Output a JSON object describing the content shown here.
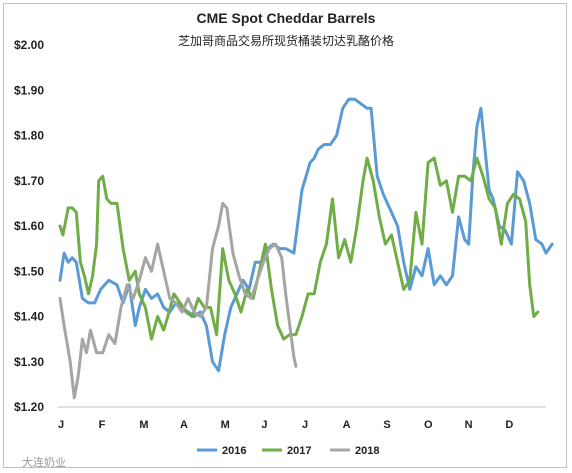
{
  "chart_data": {
    "type": "line",
    "title": "CME Spot Cheddar Barrels",
    "subtitle": "芝加哥商品交易所现货桶装切达乳酪价格",
    "xlabel": "",
    "ylabel": "",
    "months": [
      "J",
      "F",
      "M",
      "A",
      "M",
      "J",
      "J",
      "A",
      "S",
      "O",
      "N",
      "D"
    ],
    "yticks": [
      "$1.20",
      "$1.30",
      "$1.40",
      "$1.50",
      "$1.60",
      "$1.70",
      "$1.80",
      "$1.90",
      "$2.00"
    ],
    "ylim": [
      1.2,
      2.0
    ],
    "xlim": [
      0,
      12
    ],
    "grid": false,
    "legend": "bottom",
    "watermark": "大连奶业",
    "colors": {
      "2016": "#5b9bd5",
      "2017": "#70ad47",
      "2018": "#a5a5a5"
    },
    "series": [
      {
        "name": "2016",
        "x": [
          0.05,
          0.15,
          0.25,
          0.35,
          0.45,
          0.6,
          0.75,
          0.9,
          1.05,
          1.25,
          1.45,
          1.6,
          1.75,
          1.9,
          2.0,
          2.15,
          2.3,
          2.45,
          2.6,
          2.75,
          2.9,
          3.05,
          3.2,
          3.35,
          3.5,
          3.65,
          3.8,
          3.95,
          4.1,
          4.25,
          4.4,
          4.55,
          4.7,
          4.85,
          5.0,
          5.15,
          5.3,
          5.45,
          5.6,
          5.8,
          6.0,
          6.1,
          6.2,
          6.3,
          6.4,
          6.55,
          6.7,
          6.85,
          7.0,
          7.15,
          7.3,
          7.45,
          7.6,
          7.7,
          7.85,
          8.0,
          8.2,
          8.35,
          8.5,
          8.65,
          8.8,
          8.95,
          9.1,
          9.25,
          9.4,
          9.55,
          9.7,
          9.85,
          10.0,
          10.1,
          10.2,
          10.3,
          10.4,
          10.5,
          10.6,
          10.7,
          10.85,
          11.0,
          11.15,
          11.3,
          11.45,
          11.6,
          11.75,
          11.9,
          12.0,
          12.15
        ],
        "values": [
          1.48,
          1.54,
          1.52,
          1.53,
          1.52,
          1.44,
          1.43,
          1.43,
          1.46,
          1.48,
          1.47,
          1.43,
          1.47,
          1.38,
          1.42,
          1.46,
          1.44,
          1.45,
          1.42,
          1.41,
          1.43,
          1.42,
          1.41,
          1.4,
          1.41,
          1.38,
          1.3,
          1.28,
          1.36,
          1.42,
          1.45,
          1.48,
          1.46,
          1.52,
          1.52,
          1.55,
          1.56,
          1.55,
          1.55,
          1.54,
          1.68,
          1.71,
          1.74,
          1.75,
          1.77,
          1.78,
          1.78,
          1.8,
          1.86,
          1.88,
          1.88,
          1.87,
          1.86,
          1.86,
          1.71,
          1.67,
          1.63,
          1.6,
          1.52,
          1.46,
          1.51,
          1.49,
          1.55,
          1.47,
          1.49,
          1.47,
          1.49,
          1.62,
          1.57,
          1.56,
          1.71,
          1.82,
          1.86,
          1.77,
          1.68,
          1.66,
          1.6,
          1.59,
          1.56,
          1.72,
          1.7,
          1.65,
          1.57,
          1.56,
          1.54,
          1.56
        ]
      },
      {
        "name": "2017",
        "x": [
          0.05,
          0.12,
          0.25,
          0.35,
          0.45,
          0.55,
          0.65,
          0.75,
          0.85,
          0.95,
          1.0,
          1.1,
          1.2,
          1.3,
          1.45,
          1.6,
          1.75,
          1.9,
          2.0,
          2.15,
          2.3,
          2.45,
          2.6,
          2.7,
          2.85,
          3.0,
          3.15,
          3.3,
          3.45,
          3.6,
          3.75,
          3.9,
          4.05,
          4.2,
          4.35,
          4.5,
          4.65,
          4.8,
          4.95,
          5.1,
          5.25,
          5.4,
          5.55,
          5.7,
          5.85,
          6.0,
          6.15,
          6.3,
          6.45,
          6.6,
          6.75,
          6.9,
          7.05,
          7.2,
          7.35,
          7.5,
          7.6,
          7.75,
          7.9,
          8.05,
          8.2,
          8.35,
          8.5,
          8.65,
          8.8,
          8.95,
          9.1,
          9.25,
          9.4,
          9.55,
          9.7,
          9.85,
          10.0,
          10.15,
          10.3,
          10.45,
          10.6,
          10.75,
          10.9,
          11.05,
          11.2,
          11.35,
          11.5,
          11.6,
          11.7,
          11.8
        ],
        "values": [
          1.6,
          1.58,
          1.64,
          1.64,
          1.63,
          1.52,
          1.49,
          1.45,
          1.49,
          1.56,
          1.7,
          1.71,
          1.66,
          1.65,
          1.65,
          1.55,
          1.48,
          1.5,
          1.45,
          1.42,
          1.35,
          1.4,
          1.37,
          1.4,
          1.45,
          1.43,
          1.41,
          1.4,
          1.44,
          1.42,
          1.42,
          1.36,
          1.55,
          1.48,
          1.45,
          1.41,
          1.46,
          1.44,
          1.5,
          1.56,
          1.46,
          1.38,
          1.35,
          1.36,
          1.36,
          1.4,
          1.45,
          1.45,
          1.52,
          1.56,
          1.66,
          1.53,
          1.57,
          1.52,
          1.6,
          1.7,
          1.75,
          1.7,
          1.62,
          1.56,
          1.58,
          1.52,
          1.46,
          1.48,
          1.63,
          1.56,
          1.74,
          1.75,
          1.69,
          1.7,
          1.63,
          1.71,
          1.71,
          1.7,
          1.75,
          1.71,
          1.66,
          1.64,
          1.56,
          1.65,
          1.67,
          1.66,
          1.61,
          1.47,
          1.4,
          1.41
        ]
      },
      {
        "name": "2018",
        "x": [
          0.05,
          0.15,
          0.3,
          0.4,
          0.5,
          0.6,
          0.7,
          0.8,
          0.95,
          1.1,
          1.25,
          1.4,
          1.55,
          1.7,
          1.85,
          2.0,
          2.15,
          2.3,
          2.45,
          2.6,
          2.75,
          2.9,
          3.05,
          3.2,
          3.35,
          3.5,
          3.65,
          3.8,
          3.95,
          4.05,
          4.15,
          4.3,
          4.45,
          4.6,
          4.75,
          4.9,
          5.05,
          5.2,
          5.35,
          5.5,
          5.6,
          5.7,
          5.8,
          5.85
        ],
        "values": [
          1.44,
          1.38,
          1.3,
          1.22,
          1.27,
          1.35,
          1.32,
          1.37,
          1.32,
          1.32,
          1.36,
          1.34,
          1.42,
          1.47,
          1.44,
          1.48,
          1.53,
          1.5,
          1.56,
          1.5,
          1.44,
          1.43,
          1.41,
          1.44,
          1.41,
          1.4,
          1.42,
          1.55,
          1.6,
          1.65,
          1.64,
          1.54,
          1.49,
          1.45,
          1.44,
          1.48,
          1.52,
          1.55,
          1.56,
          1.53,
          1.45,
          1.38,
          1.31,
          1.29
        ]
      }
    ]
  }
}
